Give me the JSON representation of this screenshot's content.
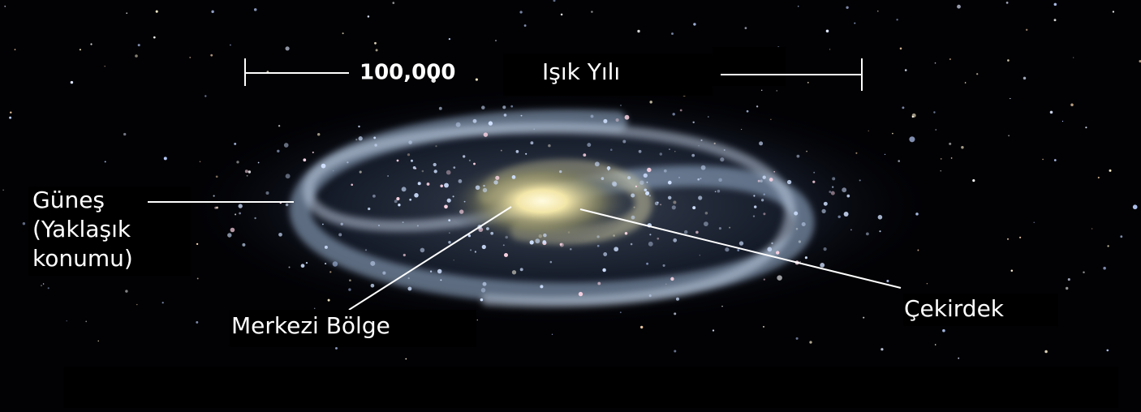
{
  "scale": {
    "distance": "100,000",
    "unit": "Işık Yılı"
  },
  "labels": {
    "sun": [
      "Güneş",
      "(Yaklaşık",
      "konumu)"
    ],
    "central_region": "Merkezi Bölge",
    "core": "Çekirdek"
  }
}
